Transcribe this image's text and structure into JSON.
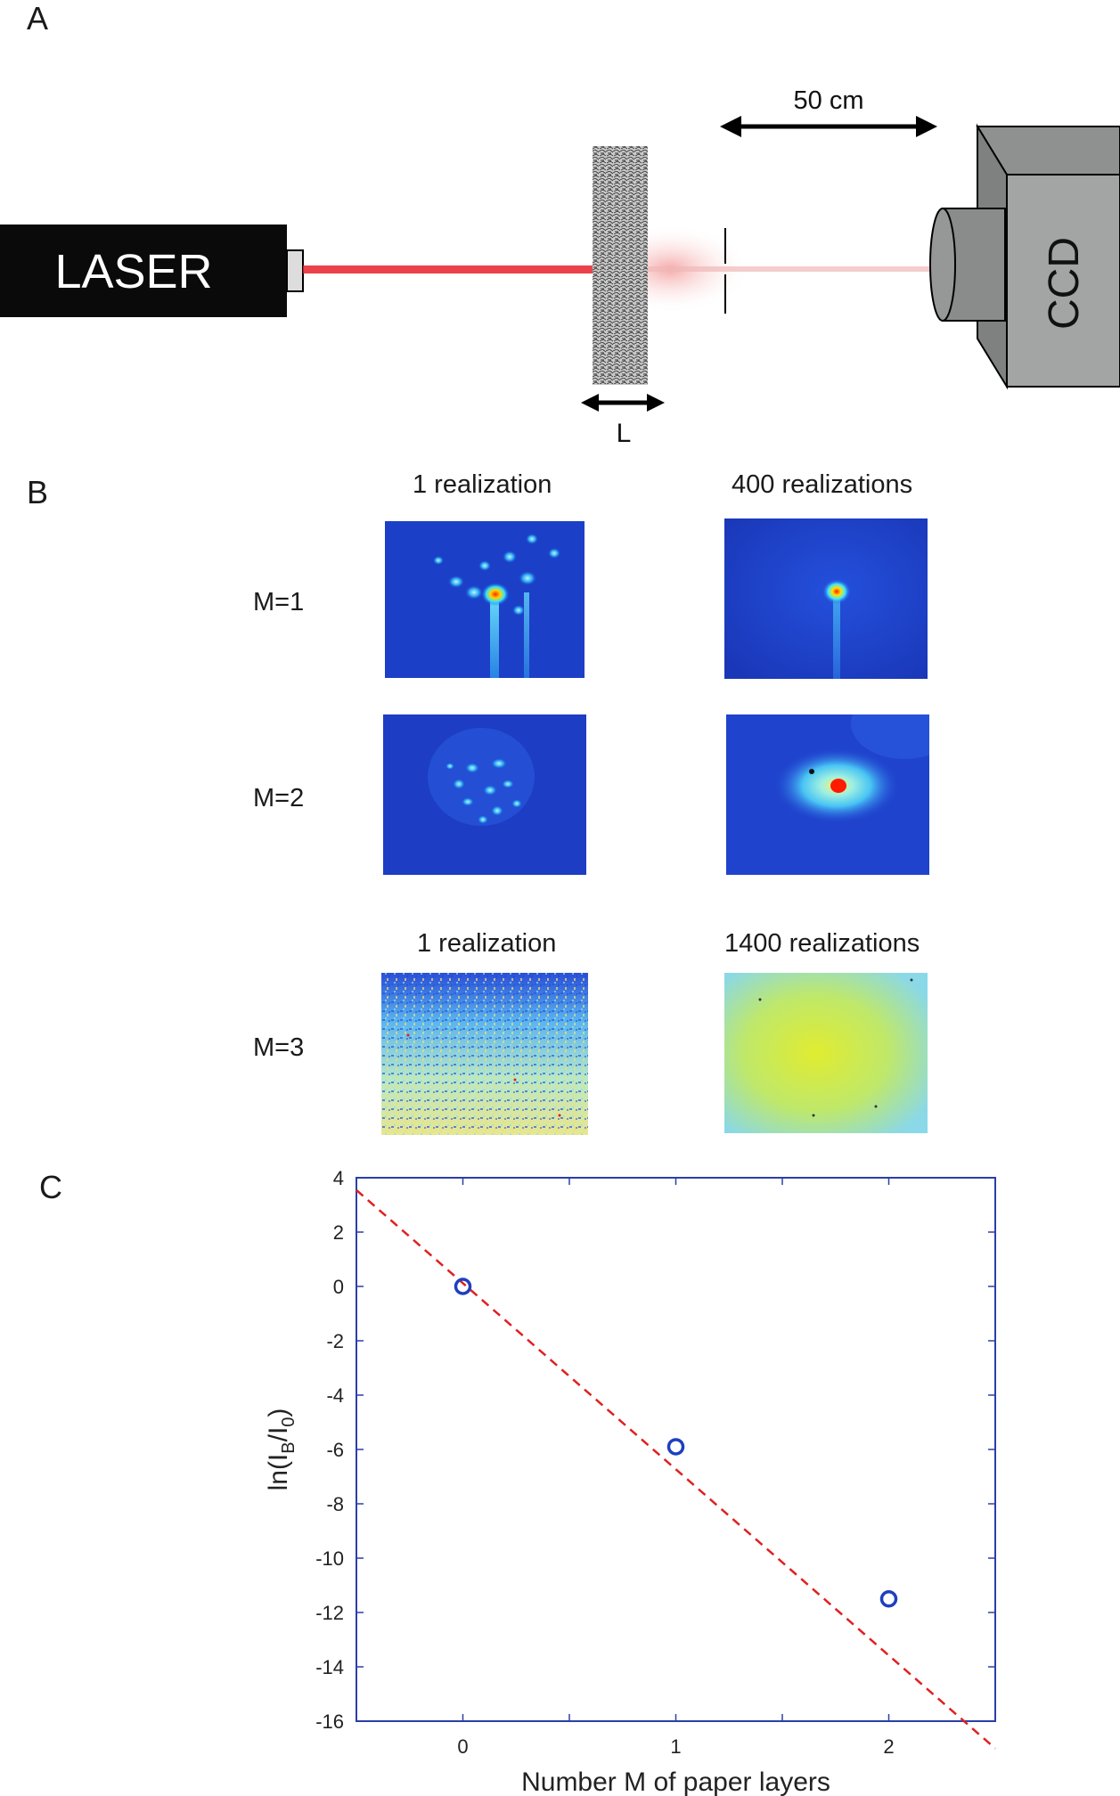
{
  "panel_a": {
    "letter": "A",
    "laser_label": "LASER",
    "camera_label": "CCD",
    "distance_label": "50 cm",
    "thickness_label": "L"
  },
  "panel_b": {
    "letter": "B",
    "col_1_realization": "1 realization",
    "col_400_realizations": "400 realizations",
    "col_1400_realizations": "1400 realizations",
    "rows": [
      {
        "label": "M=1"
      },
      {
        "label": "M=2"
      },
      {
        "label": "M=3"
      }
    ]
  },
  "panel_c": {
    "letter": "C"
  },
  "chart_data": {
    "type": "scatter",
    "xlabel": "Number M of paper layers",
    "ylabel_base": "ln(I",
    "ylabel_sub1": "B",
    "ylabel_mid": "/I",
    "ylabel_sub2": "0",
    "ylabel_end": ")",
    "xlim": [
      -0.5,
      2.5
    ],
    "ylim": [
      -16,
      4
    ],
    "xticks": [
      0,
      1,
      2
    ],
    "yticks": [
      4,
      2,
      0,
      -2,
      -4,
      -6,
      -8,
      -10,
      -12,
      -14,
      -16
    ],
    "grid": false,
    "series": [
      {
        "marker": "circle",
        "color": "#1f3fbf",
        "x": [
          0,
          1,
          2
        ],
        "y": [
          0,
          -5.9,
          -11.5
        ]
      }
    ],
    "fit_line": {
      "style": "dashed",
      "color": "#e02020",
      "slope": -6.85,
      "intercept": 0.12
    }
  }
}
